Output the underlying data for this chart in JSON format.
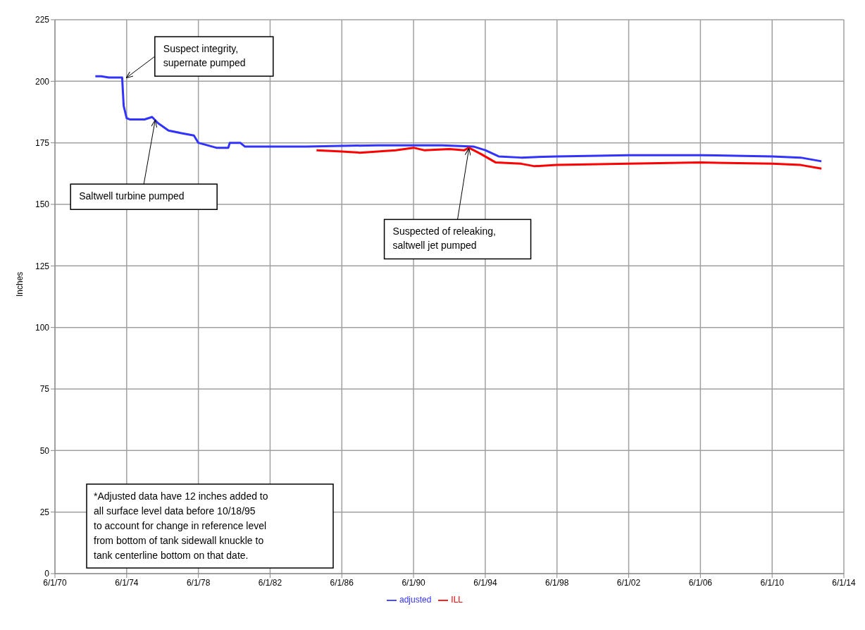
{
  "chart_data": {
    "type": "line",
    "ylabel": "Inches",
    "ylim": [
      0,
      225
    ],
    "yticks": [
      0,
      25,
      50,
      75,
      100,
      125,
      150,
      175,
      200,
      225
    ],
    "xlim": [
      "1970-06-01",
      "2014-06-01"
    ],
    "xticks": [
      {
        "value": "1970-06-01",
        "label": "6/1/70"
      },
      {
        "value": "1974-06-01",
        "label": "6/1/74"
      },
      {
        "value": "1978-06-01",
        "label": "6/1/78"
      },
      {
        "value": "1982-06-01",
        "label": "6/1/82"
      },
      {
        "value": "1986-06-01",
        "label": "6/1/86"
      },
      {
        "value": "1990-06-01",
        "label": "6/1/90"
      },
      {
        "value": "1994-06-01",
        "label": "6/1/94"
      },
      {
        "value": "1998-06-01",
        "label": "6/1/98"
      },
      {
        "value": "2002-06-01",
        "label": "6/1/02"
      },
      {
        "value": "2006-06-01",
        "label": "6/1/06"
      },
      {
        "value": "2010-06-01",
        "label": "6/1/10"
      },
      {
        "value": "2014-06-01",
        "label": "6/1/14"
      }
    ],
    "grid": true,
    "legend": "bottom",
    "marker": "none",
    "line_style": "solid",
    "series": [
      {
        "name": "adjusted",
        "color": "#3333ff",
        "x": [
          "1972-09",
          "1973-01",
          "1973-06",
          "1974-03",
          "1974-04",
          "1974-06",
          "1974-08",
          "1975-06",
          "1975-11",
          "1976-03",
          "1976-10",
          "1977-06",
          "1978-03",
          "1978-06",
          "1979-06",
          "1980-02",
          "1980-03",
          "1980-10",
          "1981-01",
          "1981-06",
          "1984-06",
          "1988-06",
          "1992-01",
          "1993-10",
          "1994-06",
          "1995-03",
          "1996-06",
          "1998-06",
          "2002-06",
          "2006-06",
          "2010-06",
          "2012-01",
          "2013-03"
        ],
        "values": [
          202,
          202,
          201.5,
          201.5,
          190,
          185,
          184.5,
          184.5,
          185.5,
          183,
          180,
          179,
          178,
          175,
          173,
          173,
          175,
          175,
          173.5,
          173.5,
          173.5,
          174,
          174,
          173.5,
          172,
          169.5,
          169,
          169.5,
          170,
          170,
          169.5,
          169,
          167.5
        ]
      },
      {
        "name": "ILL",
        "color": "#ff0000",
        "x": [
          "1985-01",
          "1986-06",
          "1987-06",
          "1989-06",
          "1990-06",
          "1991-01",
          "1992-06",
          "1993-04",
          "1993-07",
          "1994-03",
          "1995-01",
          "1996-06",
          "1997-03",
          "1998-06",
          "2002-06",
          "2006-06",
          "2010-06",
          "2012-01",
          "2013-03"
        ],
        "values": [
          172,
          171.5,
          171,
          172,
          173,
          172,
          172.5,
          172,
          173,
          170.5,
          167,
          166.5,
          165.5,
          166,
          166.5,
          167,
          166.5,
          166,
          164.5
        ]
      }
    ],
    "annotations": [
      {
        "text": "Suspect integrity,\nsupernate pumped",
        "x": "1974-06",
        "y": 201.5
      },
      {
        "text": "Saltwell turbine pumped",
        "x": "1976-01",
        "y": 184
      },
      {
        "text": "Suspected of releaking,\nsaltwell jet pumped",
        "x": "1993-07",
        "y": 172.5
      },
      "*Adjusted data have 12 inches added to\nall surface level data before  10/18/95\nto account for change in reference level\nfrom bottom of tank sidewall knuckle to\ntank centerline bottom on that date."
    ]
  }
}
